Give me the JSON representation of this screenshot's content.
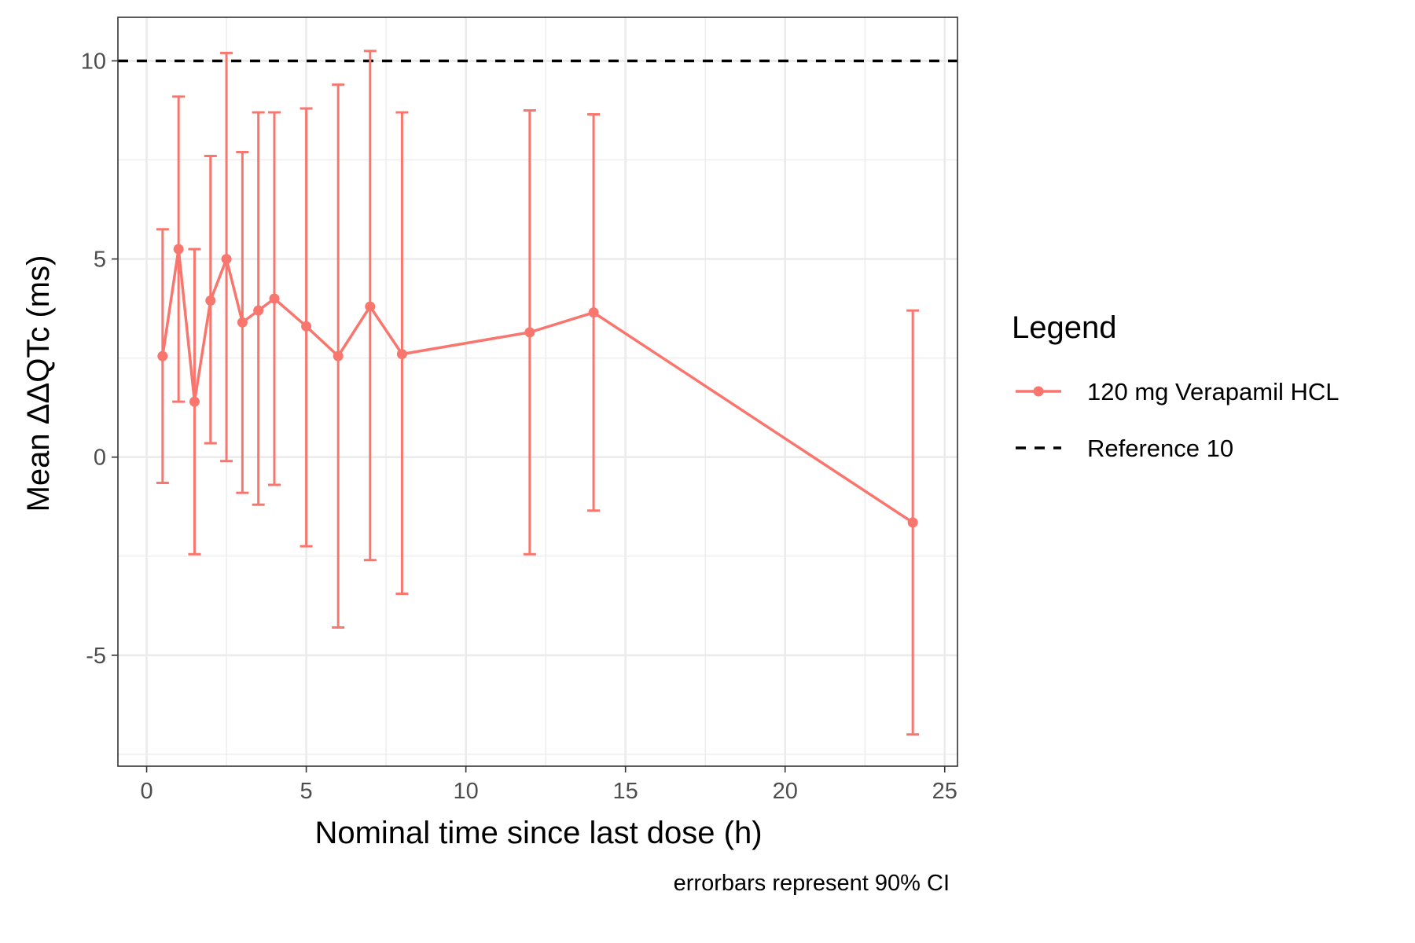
{
  "chart_data": {
    "type": "line",
    "xlabel": "Nominal time since last dose (h)",
    "ylabel": "Mean ΔΔQTc (ms)",
    "caption": "errorbars represent 90% CI",
    "xlim": [
      -0.9,
      25.4
    ],
    "ylim": [
      -7.8,
      11.1
    ],
    "x_ticks": [
      0,
      5,
      10,
      15,
      20,
      25
    ],
    "x_tick_labels": [
      "0",
      "5",
      "10",
      "15",
      "20",
      "25"
    ],
    "y_ticks": [
      -5,
      0,
      5,
      10
    ],
    "y_tick_labels": [
      "-5",
      "0",
      "5",
      "10"
    ],
    "grid": true,
    "legend": {
      "title": "Legend",
      "position": "right",
      "entries": [
        "120 mg Verapamil HCL",
        "Reference 10"
      ]
    },
    "reference_line": {
      "name": "Reference 10",
      "y": 10,
      "color": "#000000",
      "style": "dashed"
    },
    "series": [
      {
        "name": "120 mg Verapamil HCL",
        "color": "#F8766D",
        "x": [
          0.5,
          1,
          1.5,
          2,
          2.5,
          3,
          3.5,
          4,
          5,
          6,
          7,
          8,
          12,
          14,
          24
        ],
        "y": [
          2.55,
          5.25,
          1.4,
          3.95,
          5.0,
          3.4,
          3.7,
          4.0,
          3.3,
          2.55,
          3.8,
          2.6,
          3.15,
          3.65,
          -1.65
        ],
        "lower": [
          -0.65,
          1.4,
          -2.45,
          0.35,
          -0.1,
          -0.9,
          -1.2,
          -0.7,
          -2.25,
          -4.3,
          -2.6,
          -3.45,
          -2.45,
          -1.35,
          -7.0
        ],
        "upper": [
          5.75,
          9.1,
          5.25,
          7.6,
          10.2,
          7.7,
          8.7,
          8.7,
          8.8,
          9.4,
          10.25,
          8.7,
          8.75,
          8.65,
          3.7
        ]
      }
    ]
  }
}
